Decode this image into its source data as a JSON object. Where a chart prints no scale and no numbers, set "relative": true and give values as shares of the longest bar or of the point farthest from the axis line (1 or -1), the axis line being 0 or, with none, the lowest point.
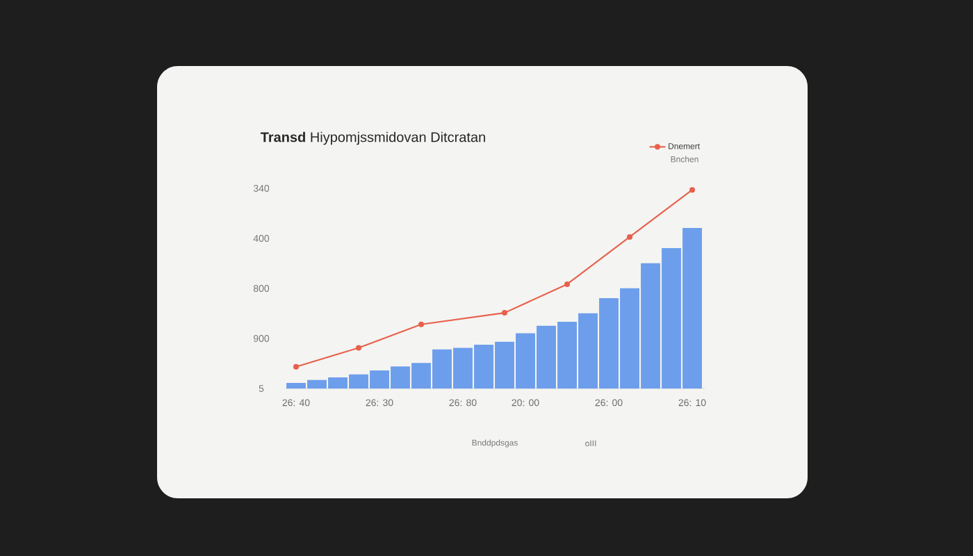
{
  "chart_data": {
    "type": "bar",
    "relative": true,
    "title": "**Transd** Hiypomjssmidovan Ditcratan",
    "categories": [
      "26: 40",
      null,
      null,
      null,
      "26: 30",
      null,
      null,
      null,
      "26: 80",
      null,
      null,
      "20: 00",
      null,
      null,
      null,
      "26: 00",
      null,
      null,
      null,
      "26: 10"
    ],
    "legend": "top right",
    "series": [
      {
        "color": "#6d9eeb",
        "values": [
          0.028,
          0.043,
          0.056,
          0.071,
          0.091,
          0.111,
          0.129,
          0.197,
          0.205,
          0.22,
          0.235,
          0.278,
          0.316,
          0.336,
          0.379,
          0.455,
          0.505,
          0.631,
          0.707,
          0.808
        ]
      },
      {
        "type": "line",
        "name": "Dnemert",
        "color": "#e8604c",
        "marker": "circle",
        "line_style": "solid",
        "values": [
          0.109,
          null,
          null,
          0.205,
          null,
          null,
          0.323,
          null,
          null,
          null,
          0.381,
          null,
          null,
          0.525,
          null,
          null,
          0.763,
          null,
          null,
          1
        ]
      }
    ],
    "annotations": [
      "Bnchen",
      "Bnddpdsgas",
      "oIII",
      "5",
      "900",
      "800",
      "400",
      "340"
    ]
  }
}
